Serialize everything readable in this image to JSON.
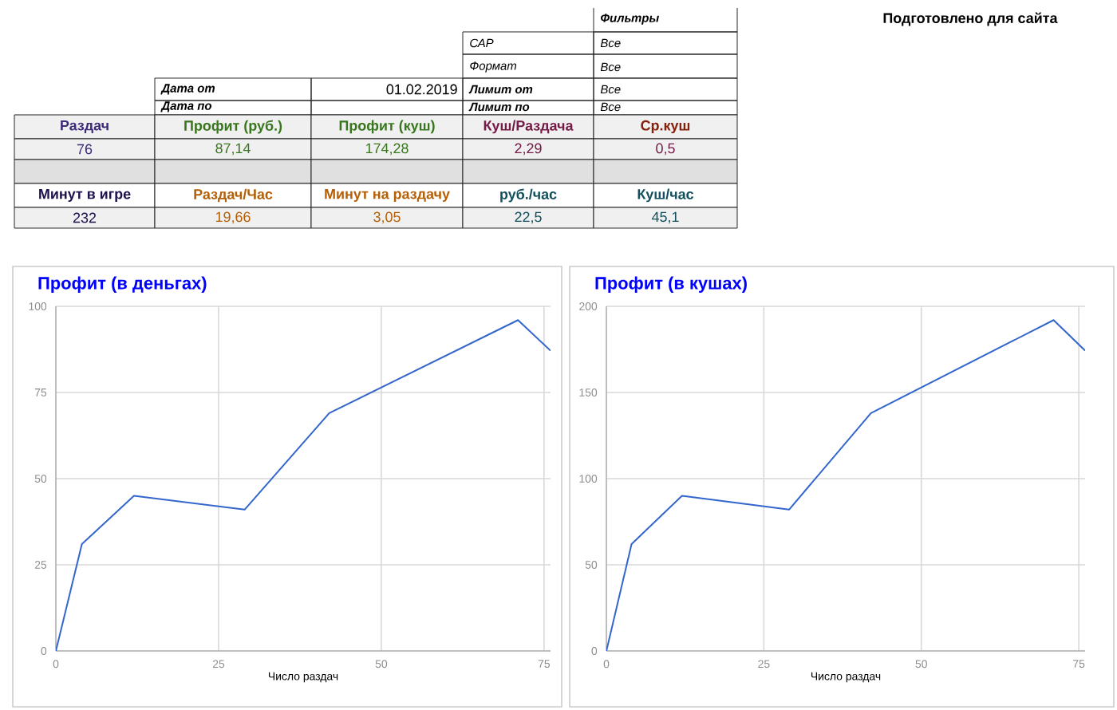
{
  "chart_data": [
    {
      "type": "other",
      "annotations": [
        "Фильтры",
        "Подготовлено для сайта",
        "САР",
        "Все",
        "Формат",
        "Все",
        "Дата от",
        "01.02.2019",
        "Лимит от",
        "Все",
        "Дата по",
        "Лимит по",
        "Все",
        "Раздач",
        "Профит (руб.)",
        "Профит (куш)",
        "Куш/Раздача",
        "Ср.куш",
        "76",
        "87,14",
        "174,28",
        "2,29",
        "0,5",
        "Минут в игре",
        "Раздач/Час",
        "Минут на раздачу",
        "руб./час",
        "Куш/час",
        "232",
        "19,66",
        "3,05",
        "22,5",
        "45,1"
      ],
      "colors": [
        "#000000",
        "#000000",
        "#000000",
        "#000000",
        "#000000",
        "#000000",
        "#000000",
        "#000000",
        "#000000",
        "#000000",
        "#000000",
        "#000000",
        "#000000",
        "#3d2a7a",
        "#38761d",
        "#38761d",
        "#741b47",
        "#85200c",
        "#3d2a7a",
        "#38761d",
        "#38761d",
        "#741b47",
        "#741b47",
        "#20124d",
        "#b45f06",
        "#b45f06",
        "#134f5c",
        "#134f5c",
        "#20124d",
        "#b45f06",
        "#b45f06",
        "#134f5c",
        "#134f5c"
      ]
    },
    {
      "type": "line",
      "title": "Профит (в деньгах)",
      "xlabel": "Число раздач",
      "x": [
        0,
        4,
        12,
        29,
        42,
        71,
        76
      ],
      "values": [
        0,
        31,
        45,
        41,
        69,
        96,
        87.14
      ],
      "color": "#3366cc",
      "xlim": [
        0,
        76
      ],
      "xticks": [
        0,
        25,
        50,
        75
      ],
      "ylim": [
        0,
        100
      ],
      "yticks": [
        0,
        25,
        50,
        75,
        100
      ],
      "grid": true,
      "marker": "none"
    },
    {
      "type": "line",
      "title": "Профит (в кушах)",
      "xlabel": "Число раздач",
      "x": [
        0,
        4,
        12,
        29,
        42,
        71,
        76
      ],
      "values": [
        0,
        62,
        90,
        82,
        138,
        192,
        174.28
      ],
      "color": "#3366cc",
      "xlim": [
        0,
        76
      ],
      "xticks": [
        0,
        25,
        50,
        75
      ],
      "ylim": [
        0,
        200
      ],
      "yticks": [
        0,
        50,
        100,
        150,
        200
      ],
      "grid": true,
      "marker": "none"
    }
  ]
}
